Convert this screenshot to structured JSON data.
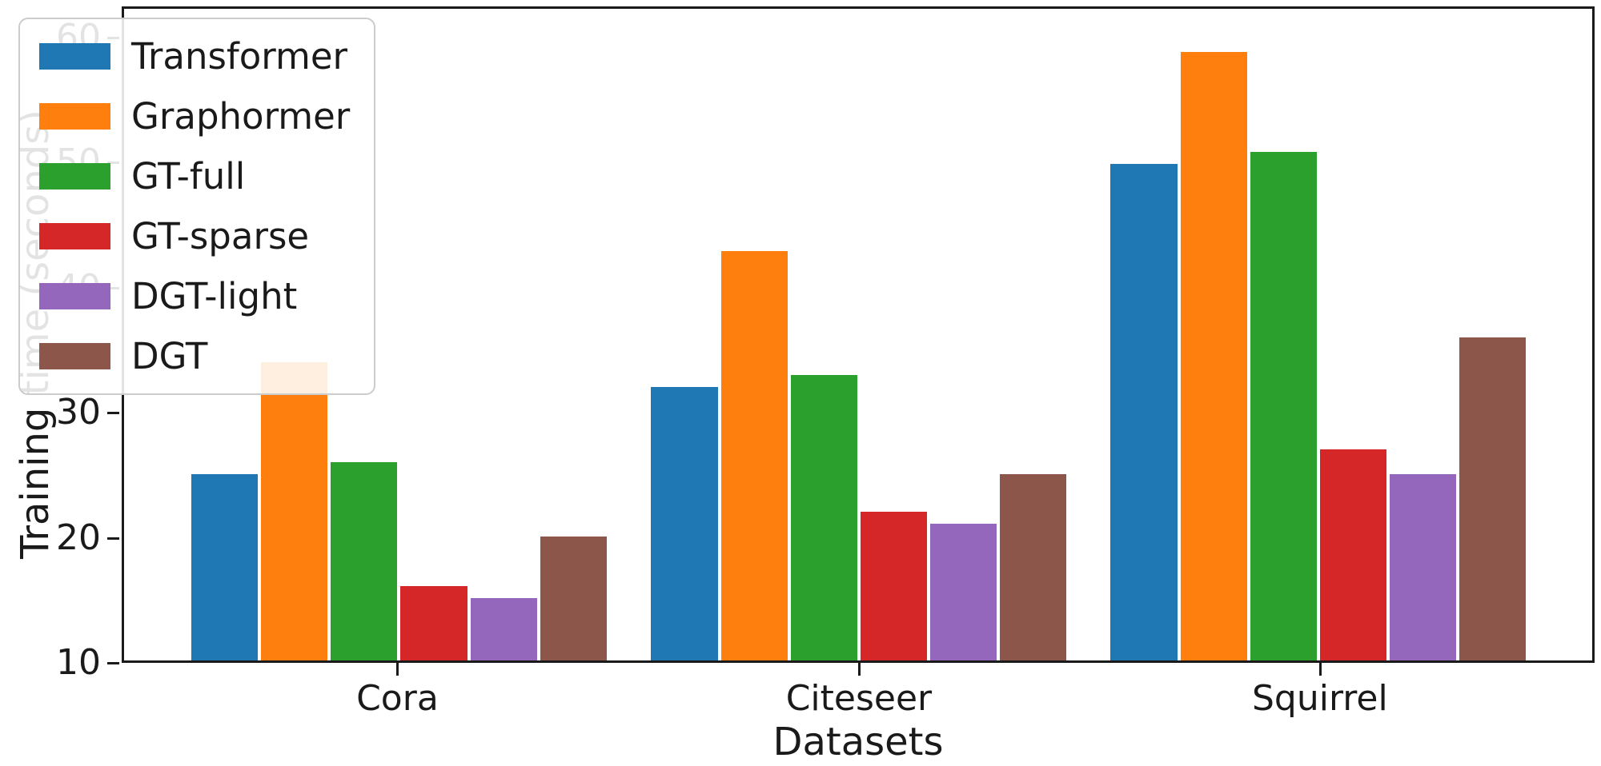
{
  "chart_data": {
    "type": "bar",
    "title": "",
    "xlabel": "Datasets",
    "ylabel": "Training time (seconds)",
    "categories": [
      "Cora",
      "Citeseer",
      "Squirrel"
    ],
    "series": [
      {
        "name": "Transformer",
        "color": "#1f77b4",
        "values": [
          25,
          32,
          50
        ]
      },
      {
        "name": "Graphormer",
        "color": "#ff7f0e",
        "values": [
          34,
          43,
          59
        ]
      },
      {
        "name": "GT-full",
        "color": "#2ca02c",
        "values": [
          26,
          33,
          51
        ]
      },
      {
        "name": "GT-sparse",
        "color": "#d62728",
        "values": [
          16,
          22,
          27
        ]
      },
      {
        "name": "DGT-light",
        "color": "#9467bd",
        "values": [
          15,
          21,
          25
        ]
      },
      {
        "name": "DGT",
        "color": "#8c564b",
        "values": [
          20,
          25,
          36
        ]
      }
    ],
    "ylim": [
      10,
      62.5
    ],
    "yticks": [
      10,
      20,
      30,
      40,
      50,
      60
    ],
    "legend_position": "upper-left",
    "grid": false,
    "axis_color": "#1a1a1a"
  }
}
